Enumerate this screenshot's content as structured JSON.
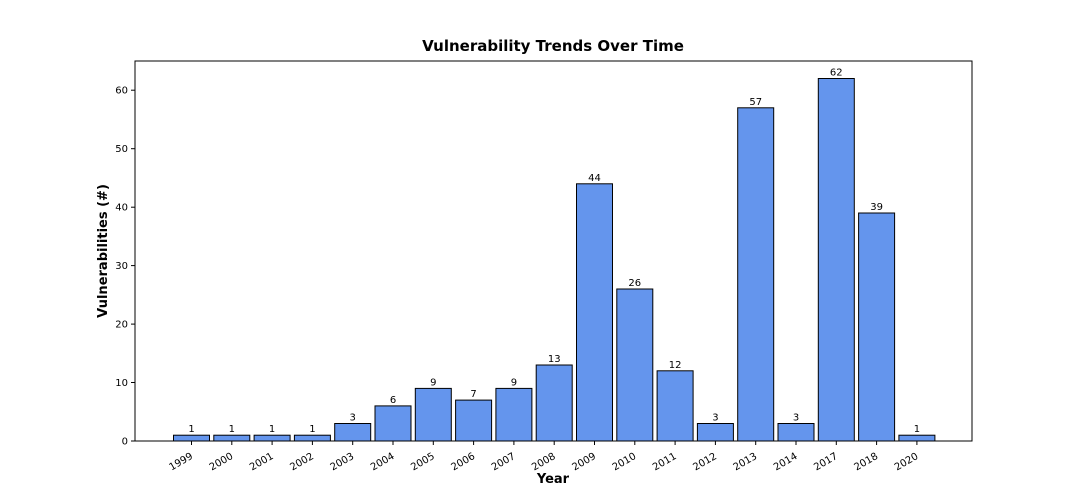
{
  "chart_data": {
    "type": "bar",
    "title": "Vulnerability Trends Over Time",
    "xlabel": "Year",
    "ylabel": "Vulnerabilities (#)",
    "categories": [
      "1999",
      "2000",
      "2001",
      "2002",
      "2003",
      "2004",
      "2005",
      "2006",
      "2007",
      "2008",
      "2009",
      "2010",
      "2011",
      "2012",
      "2013",
      "2014",
      "2017",
      "2018",
      "2020"
    ],
    "values": [
      1,
      1,
      1,
      1,
      3,
      6,
      9,
      7,
      9,
      13,
      44,
      26,
      12,
      3,
      57,
      3,
      62,
      39,
      1
    ],
    "ylim": [
      0,
      65
    ],
    "yticks": [
      0,
      10,
      20,
      30,
      40,
      50,
      60
    ],
    "grid": false,
    "bar_color": "#6495ED",
    "bar_edge_color": "#000000",
    "x_tick_rotation": 30,
    "data_labels": true
  }
}
